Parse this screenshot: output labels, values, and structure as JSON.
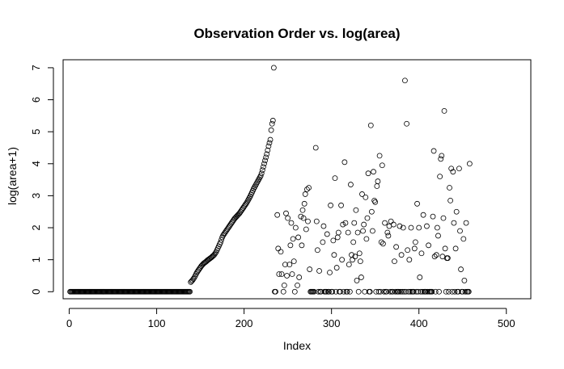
{
  "chart_data": {
    "type": "scatter",
    "title": "Observation Order vs. log(area)",
    "xlabel": "Index",
    "ylabel": "log(area+1)",
    "xlim": [
      -7,
      528
    ],
    "ylim": [
      -0.22,
      7.25
    ],
    "xticks": [
      0,
      100,
      200,
      300,
      400,
      500
    ],
    "yticks": [
      0,
      1,
      2,
      3,
      4,
      5,
      6,
      7
    ],
    "marker": "open-circle",
    "grid": false,
    "legend": "none",
    "points": [
      [
        1,
        0
      ],
      [
        2,
        0
      ],
      [
        3,
        0
      ],
      [
        4,
        0
      ],
      [
        5,
        0
      ],
      [
        6,
        0
      ],
      [
        7,
        0
      ],
      [
        8,
        0
      ],
      [
        9,
        0
      ],
      [
        10,
        0
      ],
      [
        11,
        0
      ],
      [
        12,
        0
      ],
      [
        13,
        0
      ],
      [
        14,
        0
      ],
      [
        15,
        0
      ],
      [
        16,
        0
      ],
      [
        17,
        0
      ],
      [
        18,
        0
      ],
      [
        19,
        0
      ],
      [
        20,
        0
      ],
      [
        21,
        0
      ],
      [
        22,
        0
      ],
      [
        23,
        0
      ],
      [
        24,
        0
      ],
      [
        25,
        0
      ],
      [
        26,
        0
      ],
      [
        27,
        0
      ],
      [
        28,
        0
      ],
      [
        29,
        0
      ],
      [
        30,
        0
      ],
      [
        31,
        0
      ],
      [
        32,
        0
      ],
      [
        33,
        0
      ],
      [
        34,
        0
      ],
      [
        35,
        0
      ],
      [
        36,
        0
      ],
      [
        37,
        0
      ],
      [
        38,
        0
      ],
      [
        39,
        0
      ],
      [
        40,
        0
      ],
      [
        41,
        0
      ],
      [
        42,
        0
      ],
      [
        43,
        0
      ],
      [
        44,
        0
      ],
      [
        45,
        0
      ],
      [
        46,
        0
      ],
      [
        47,
        0
      ],
      [
        48,
        0
      ],
      [
        49,
        0
      ],
      [
        50,
        0
      ],
      [
        51,
        0
      ],
      [
        52,
        0
      ],
      [
        53,
        0
      ],
      [
        54,
        0
      ],
      [
        55,
        0
      ],
      [
        56,
        0
      ],
      [
        57,
        0
      ],
      [
        58,
        0
      ],
      [
        59,
        0
      ],
      [
        60,
        0
      ],
      [
        61,
        0
      ],
      [
        62,
        0
      ],
      [
        63,
        0
      ],
      [
        64,
        0
      ],
      [
        65,
        0
      ],
      [
        66,
        0
      ],
      [
        67,
        0
      ],
      [
        68,
        0
      ],
      [
        69,
        0
      ],
      [
        70,
        0
      ],
      [
        71,
        0
      ],
      [
        72,
        0
      ],
      [
        73,
        0
      ],
      [
        74,
        0
      ],
      [
        75,
        0
      ],
      [
        76,
        0
      ],
      [
        77,
        0
      ],
      [
        78,
        0
      ],
      [
        79,
        0
      ],
      [
        80,
        0
      ],
      [
        81,
        0
      ],
      [
        82,
        0
      ],
      [
        83,
        0
      ],
      [
        84,
        0
      ],
      [
        85,
        0
      ],
      [
        86,
        0
      ],
      [
        87,
        0
      ],
      [
        88,
        0
      ],
      [
        89,
        0
      ],
      [
        90,
        0
      ],
      [
        91,
        0
      ],
      [
        92,
        0
      ],
      [
        93,
        0
      ],
      [
        94,
        0
      ],
      [
        95,
        0
      ],
      [
        96,
        0
      ],
      [
        97,
        0
      ],
      [
        98,
        0
      ],
      [
        99,
        0
      ],
      [
        100,
        0
      ],
      [
        101,
        0
      ],
      [
        102,
        0
      ],
      [
        103,
        0
      ],
      [
        104,
        0
      ],
      [
        105,
        0
      ],
      [
        106,
        0
      ],
      [
        107,
        0
      ],
      [
        108,
        0
      ],
      [
        109,
        0
      ],
      [
        110,
        0
      ],
      [
        111,
        0
      ],
      [
        112,
        0
      ],
      [
        113,
        0
      ],
      [
        114,
        0
      ],
      [
        115,
        0
      ],
      [
        116,
        0
      ],
      [
        117,
        0
      ],
      [
        118,
        0
      ],
      [
        119,
        0
      ],
      [
        120,
        0
      ],
      [
        121,
        0
      ],
      [
        122,
        0
      ],
      [
        123,
        0
      ],
      [
        124,
        0
      ],
      [
        125,
        0
      ],
      [
        126,
        0
      ],
      [
        127,
        0
      ],
      [
        128,
        0
      ],
      [
        129,
        0
      ],
      [
        130,
        0
      ],
      [
        131,
        0
      ],
      [
        132,
        0
      ],
      [
        133,
        0
      ],
      [
        134,
        0
      ],
      [
        135,
        0
      ],
      [
        136,
        0
      ],
      [
        137,
        0
      ],
      [
        138,
        0
      ],
      [
        139,
        0.3
      ],
      [
        140,
        0.33
      ],
      [
        141,
        0.36
      ],
      [
        142,
        0.4
      ],
      [
        143,
        0.44
      ],
      [
        144,
        0.49
      ],
      [
        145,
        0.55
      ],
      [
        146,
        0.6
      ],
      [
        147,
        0.64
      ],
      [
        148,
        0.68
      ],
      [
        149,
        0.72
      ],
      [
        150,
        0.76
      ],
      [
        151,
        0.8
      ],
      [
        152,
        0.83
      ],
      [
        153,
        0.86
      ],
      [
        154,
        0.89
      ],
      [
        155,
        0.91
      ],
      [
        156,
        0.93
      ],
      [
        157,
        0.95
      ],
      [
        158,
        0.98
      ],
      [
        159,
        1.0
      ],
      [
        160,
        1.02
      ],
      [
        161,
        1.04
      ],
      [
        162,
        1.06
      ],
      [
        163,
        1.08
      ],
      [
        164,
        1.11
      ],
      [
        165,
        1.13
      ],
      [
        166,
        1.16
      ],
      [
        167,
        1.2
      ],
      [
        168,
        1.24
      ],
      [
        169,
        1.3
      ],
      [
        170,
        1.36
      ],
      [
        171,
        1.42
      ],
      [
        172,
        1.48
      ],
      [
        173,
        1.54
      ],
      [
        174,
        1.62
      ],
      [
        175,
        1.7
      ],
      [
        176,
        1.76
      ],
      [
        177,
        1.8
      ],
      [
        178,
        1.84
      ],
      [
        179,
        1.88
      ],
      [
        180,
        1.92
      ],
      [
        181,
        1.96
      ],
      [
        182,
        2.0
      ],
      [
        183,
        2.04
      ],
      [
        184,
        2.08
      ],
      [
        185,
        2.12
      ],
      [
        186,
        2.16
      ],
      [
        187,
        2.2
      ],
      [
        188,
        2.24
      ],
      [
        189,
        2.28
      ],
      [
        190,
        2.31
      ],
      [
        191,
        2.34
      ],
      [
        192,
        2.37
      ],
      [
        193,
        2.4
      ],
      [
        194,
        2.43
      ],
      [
        195,
        2.46
      ],
      [
        196,
        2.5
      ],
      [
        197,
        2.54
      ],
      [
        198,
        2.58
      ],
      [
        199,
        2.62
      ],
      [
        200,
        2.66
      ],
      [
        201,
        2.7
      ],
      [
        202,
        2.74
      ],
      [
        203,
        2.78
      ],
      [
        204,
        2.83
      ],
      [
        205,
        2.88
      ],
      [
        206,
        2.93
      ],
      [
        207,
        2.98
      ],
      [
        208,
        3.04
      ],
      [
        209,
        3.1
      ],
      [
        210,
        3.16
      ],
      [
        211,
        3.22
      ],
      [
        212,
        3.27
      ],
      [
        213,
        3.32
      ],
      [
        214,
        3.37
      ],
      [
        215,
        3.42
      ],
      [
        216,
        3.47
      ],
      [
        217,
        3.52
      ],
      [
        218,
        3.57
      ],
      [
        219,
        3.62
      ],
      [
        220,
        3.7
      ],
      [
        221,
        3.8
      ],
      [
        222,
        3.9
      ],
      [
        223,
        4.0
      ],
      [
        224,
        4.1
      ],
      [
        225,
        4.2
      ],
      [
        226,
        4.3
      ],
      [
        227,
        4.42
      ],
      [
        228,
        4.55
      ],
      [
        229,
        4.65
      ],
      [
        230,
        4.75
      ],
      [
        231,
        5.05
      ],
      [
        232,
        5.25
      ],
      [
        233,
        5.35
      ],
      [
        234,
        7.0
      ],
      [
        235,
        0
      ],
      [
        236,
        0
      ],
      [
        238,
        2.4
      ],
      [
        239,
        1.35
      ],
      [
        240,
        0.55
      ],
      [
        242,
        1.25
      ],
      [
        243,
        0.55
      ],
      [
        245,
        0
      ],
      [
        246,
        0.2
      ],
      [
        247,
        0.85
      ],
      [
        248,
        2.45
      ],
      [
        249,
        0.5
      ],
      [
        250,
        2.3
      ],
      [
        252,
        0.85
      ],
      [
        253,
        1.45
      ],
      [
        254,
        2.15
      ],
      [
        255,
        0.55
      ],
      [
        256,
        1.65
      ],
      [
        257,
        0.95
      ],
      [
        258,
        0
      ],
      [
        259,
        2.0
      ],
      [
        261,
        0.2
      ],
      [
        262,
        1.7
      ],
      [
        263,
        0.45
      ],
      [
        265,
        2.35
      ],
      [
        266,
        1.45
      ],
      [
        267,
        2.55
      ],
      [
        268,
        2.3
      ],
      [
        269,
        2.75
      ],
      [
        270,
        3.05
      ],
      [
        271,
        1.95
      ],
      [
        272,
        3.2
      ],
      [
        273,
        2.2
      ],
      [
        274,
        3.25
      ],
      [
        275,
        0.7
      ],
      [
        276,
        0
      ],
      [
        277,
        0
      ],
      [
        278,
        0
      ],
      [
        279,
        0
      ],
      [
        280,
        0
      ],
      [
        282,
        4.5
      ],
      [
        283,
        2.2
      ],
      [
        284,
        1.3
      ],
      [
        285,
        0
      ],
      [
        286,
        0.65
      ],
      [
        287,
        0
      ],
      [
        288,
        0
      ],
      [
        290,
        1.55
      ],
      [
        291,
        2.05
      ],
      [
        292,
        0
      ],
      [
        293,
        0
      ],
      [
        294,
        0
      ],
      [
        295,
        1.8
      ],
      [
        296,
        0
      ],
      [
        297,
        0
      ],
      [
        298,
        0.6
      ],
      [
        299,
        2.7
      ],
      [
        300,
        0
      ],
      [
        301,
        0
      ],
      [
        302,
        1.6
      ],
      [
        303,
        1.15
      ],
      [
        304,
        3.55
      ],
      [
        305,
        0
      ],
      [
        306,
        0.75
      ],
      [
        307,
        1.7
      ],
      [
        308,
        1.85
      ],
      [
        309,
        0
      ],
      [
        310,
        0
      ],
      [
        311,
        2.7
      ],
      [
        312,
        1.0
      ],
      [
        313,
        2.1
      ],
      [
        314,
        0
      ],
      [
        315,
        4.05
      ],
      [
        316,
        2.15
      ],
      [
        317,
        0
      ],
      [
        318,
        0
      ],
      [
        319,
        1.85
      ],
      [
        320,
        0.85
      ],
      [
        321,
        0
      ],
      [
        322,
        3.35
      ],
      [
        323,
        1.15
      ],
      [
        324,
        1.0
      ],
      [
        325,
        1.55
      ],
      [
        326,
        2.15
      ],
      [
        327,
        1.1
      ],
      [
        328,
        2.55
      ],
      [
        329,
        0.35
      ],
      [
        330,
        1.85
      ],
      [
        331,
        0
      ],
      [
        332,
        1.2
      ],
      [
        333,
        0.95
      ],
      [
        334,
        0.45
      ],
      [
        335,
        3.05
      ],
      [
        336,
        1.9
      ],
      [
        337,
        2.1
      ],
      [
        338,
        0
      ],
      [
        339,
        2.95
      ],
      [
        340,
        1.65
      ],
      [
        341,
        2.3
      ],
      [
        342,
        3.7
      ],
      [
        343,
        0
      ],
      [
        344,
        0
      ],
      [
        345,
        5.2
      ],
      [
        346,
        2.5
      ],
      [
        347,
        1.9
      ],
      [
        348,
        3.75
      ],
      [
        349,
        2.85
      ],
      [
        350,
        2.8
      ],
      [
        351,
        0
      ],
      [
        352,
        3.3
      ],
      [
        353,
        3.45
      ],
      [
        354,
        0
      ],
      [
        355,
        4.25
      ],
      [
        356,
        0
      ],
      [
        357,
        1.55
      ],
      [
        358,
        3.95
      ],
      [
        359,
        1.5
      ],
      [
        360,
        0
      ],
      [
        361,
        2.15
      ],
      [
        362,
        0
      ],
      [
        363,
        0
      ],
      [
        364,
        1.85
      ],
      [
        365,
        1.75
      ],
      [
        366,
        2.05
      ],
      [
        367,
        0
      ],
      [
        368,
        2.2
      ],
      [
        369,
        0
      ],
      [
        370,
        0
      ],
      [
        371,
        2.1
      ],
      [
        372,
        0.95
      ],
      [
        373,
        0
      ],
      [
        374,
        1.4
      ],
      [
        375,
        0
      ],
      [
        376,
        0
      ],
      [
        377,
        0
      ],
      [
        378,
        2.05
      ],
      [
        379,
        0
      ],
      [
        380,
        1.15
      ],
      [
        381,
        0
      ],
      [
        382,
        2.0
      ],
      [
        383,
        0
      ],
      [
        384,
        6.6
      ],
      [
        385,
        0
      ],
      [
        386,
        5.25
      ],
      [
        387,
        1.3
      ],
      [
        388,
        0
      ],
      [
        389,
        1.0
      ],
      [
        390,
        0
      ],
      [
        391,
        2.0
      ],
      [
        392,
        0
      ],
      [
        393,
        0
      ],
      [
        394,
        0
      ],
      [
        395,
        1.35
      ],
      [
        396,
        1.55
      ],
      [
        397,
        0
      ],
      [
        398,
        2.75
      ],
      [
        399,
        0
      ],
      [
        400,
        2.0
      ],
      [
        401,
        0.45
      ],
      [
        402,
        0
      ],
      [
        403,
        1.2
      ],
      [
        404,
        0
      ],
      [
        405,
        2.4
      ],
      [
        406,
        0
      ],
      [
        407,
        0
      ],
      [
        408,
        0
      ],
      [
        409,
        2.05
      ],
      [
        410,
        0
      ],
      [
        411,
        1.45
      ],
      [
        412,
        0
      ],
      [
        413,
        0
      ],
      [
        414,
        0
      ],
      [
        415,
        0
      ],
      [
        416,
        2.35
      ],
      [
        417,
        4.4
      ],
      [
        418,
        1.1
      ],
      [
        419,
        0
      ],
      [
        420,
        1.15
      ],
      [
        421,
        2.0
      ],
      [
        422,
        1.75
      ],
      [
        423,
        0
      ],
      [
        424,
        3.6
      ],
      [
        425,
        4.15
      ],
      [
        426,
        4.25
      ],
      [
        427,
        1.1
      ],
      [
        428,
        2.3
      ],
      [
        429,
        5.65
      ],
      [
        430,
        1.35
      ],
      [
        431,
        0
      ],
      [
        432,
        1.05
      ],
      [
        433,
        1.05
      ],
      [
        434,
        0
      ],
      [
        435,
        3.25
      ],
      [
        436,
        2.85
      ],
      [
        437,
        3.85
      ],
      [
        438,
        0
      ],
      [
        439,
        3.75
      ],
      [
        440,
        2.15
      ],
      [
        441,
        0
      ],
      [
        442,
        1.35
      ],
      [
        443,
        2.5
      ],
      [
        444,
        0
      ],
      [
        445,
        0
      ],
      [
        446,
        3.85
      ],
      [
        447,
        1.9
      ],
      [
        448,
        0.7
      ],
      [
        449,
        0
      ],
      [
        450,
        0
      ],
      [
        451,
        1.65
      ],
      [
        452,
        0.35
      ],
      [
        453,
        0
      ],
      [
        454,
        2.15
      ],
      [
        455,
        0
      ],
      [
        456,
        0
      ],
      [
        457,
        0
      ],
      [
        458,
        4.0
      ]
    ]
  }
}
